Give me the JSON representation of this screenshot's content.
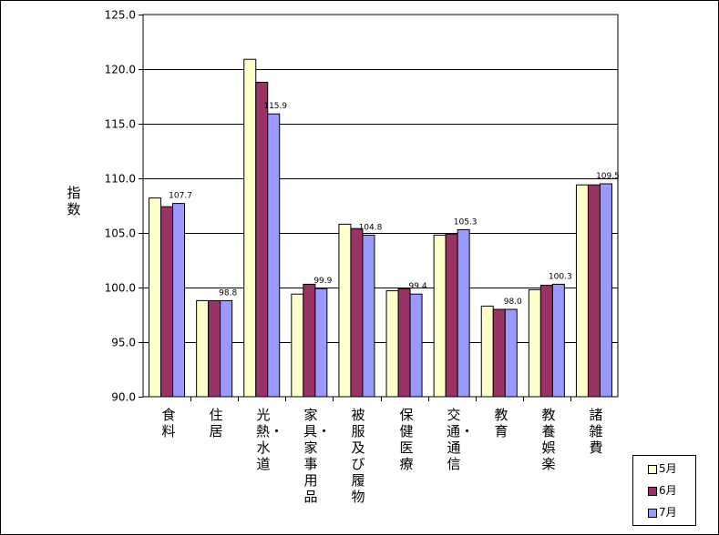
{
  "chart_data": {
    "type": "bar",
    "ylabel": "指数",
    "ylim": [
      90.0,
      125.0
    ],
    "yticks": [
      "90.0",
      "95.0",
      "100.0",
      "105.0",
      "110.0",
      "115.0",
      "120.0",
      "125.0"
    ],
    "categories": [
      "食料",
      "住居",
      "光熱・水道",
      "家具・家事用品",
      "被服及び履物",
      "保健医療",
      "交通・通信",
      "教育",
      "教養娯楽",
      "諸雑費"
    ],
    "series": [
      {
        "name": "5月",
        "color": "#ffffcc",
        "values": [
          108.2,
          98.8,
          120.9,
          99.4,
          105.8,
          99.7,
          104.8,
          98.3,
          99.8,
          109.4
        ]
      },
      {
        "name": "6月",
        "color": "#993366",
        "values": [
          107.4,
          98.8,
          118.8,
          100.3,
          105.4,
          99.9,
          104.9,
          98.0,
          100.2,
          109.4
        ]
      },
      {
        "name": "7月",
        "color": "#9999ff",
        "values": [
          107.7,
          98.8,
          115.9,
          99.9,
          104.8,
          99.4,
          105.3,
          98.0,
          100.3,
          109.5
        ]
      }
    ],
    "data_labels": [
      "107.7",
      "98.8",
      "115.9",
      "99.9",
      "104.8",
      "99.4",
      "105.3",
      "98.0",
      "100.3",
      "109.5"
    ],
    "grid": true,
    "legend_position": "bottom-right"
  }
}
